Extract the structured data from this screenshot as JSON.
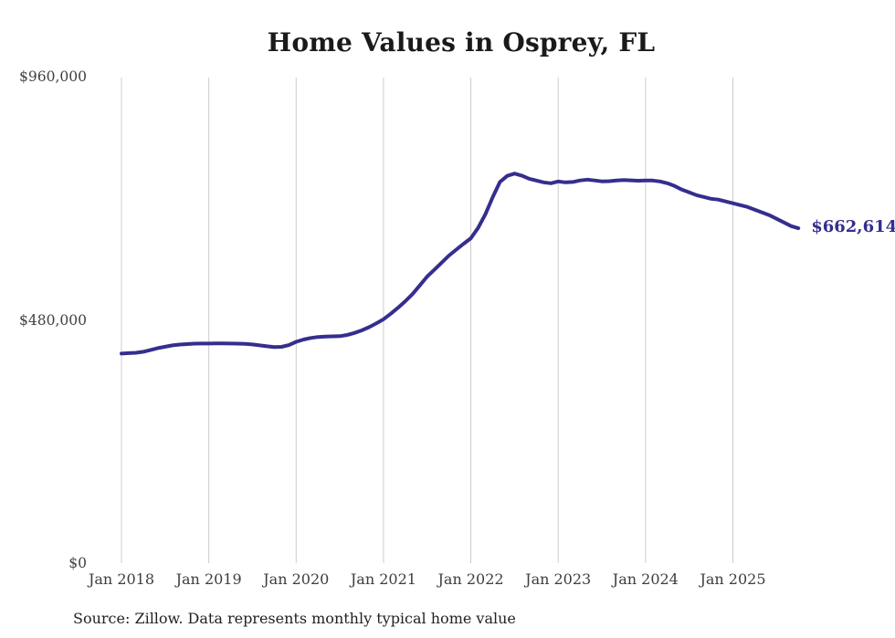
{
  "page": {
    "title": "Home Values in Osprey, FL",
    "source_note": "Source: Zillow. Data represents monthly typical home value"
  },
  "chart_data": {
    "type": "line",
    "title": "Home Values in Osprey, FL",
    "series_name": "Monthly typical home value",
    "unit": "USD",
    "x_range": {
      "start": "Jan 2018",
      "end": "Oct 2025",
      "interval": "monthly",
      "count": 94
    },
    "x_axis": {
      "ticks": [
        "Jan 2018",
        "Jan 2019",
        "Jan 2020",
        "Jan 2021",
        "Jan 2022",
        "Jan 2023",
        "Jan 2024",
        "Jan 2025"
      ]
    },
    "y_axis": {
      "min": 0,
      "max": 960000,
      "ticks": [
        {
          "label": "$960,000",
          "value": 960000
        },
        {
          "label": "$480,000",
          "value": 480000
        },
        {
          "label": "$0",
          "value": 0
        }
      ]
    },
    "grid": "vertical-only",
    "legend": "none",
    "end_label": "$662,614",
    "last_value": 662614,
    "values": [
      415300,
      416200,
      417000,
      418900,
      422500,
      426100,
      428800,
      431500,
      433200,
      434100,
      435000,
      435200,
      435200,
      435300,
      435300,
      435200,
      435000,
      434500,
      433300,
      431600,
      429800,
      428300,
      428600,
      432000,
      438600,
      443000,
      446100,
      448100,
      449000,
      449400,
      449800,
      452100,
      456100,
      461000,
      467400,
      474700,
      483000,
      494000,
      506000,
      518700,
      533000,
      550000,
      567300,
      581000,
      595000,
      608800,
      620500,
      632000,
      643000,
      663400,
      690300,
      724000,
      754000,
      766000,
      770500,
      766500,
      760400,
      756900,
      753300,
      751500,
      755100,
      753300,
      754000,
      757000,
      758600,
      757000,
      755200,
      755500,
      756900,
      758000,
      757200,
      756500,
      756900,
      756900,
      755100,
      751500,
      746100,
      738900,
      733500,
      728100,
      724500,
      720900,
      719100,
      715500,
      711900,
      708300,
      704700,
      699300,
      693900,
      688500,
      681300,
      674100,
      666900,
      662614
    ],
    "colors": {
      "line": "#352e8e",
      "end_label": "#352e8e",
      "grid": "#cccccc",
      "axis_text": "#3d3d3d",
      "title": "#1a1a1a",
      "source": "#222222"
    },
    "source_note": "Source: Zillow. Data represents monthly typical home value"
  }
}
